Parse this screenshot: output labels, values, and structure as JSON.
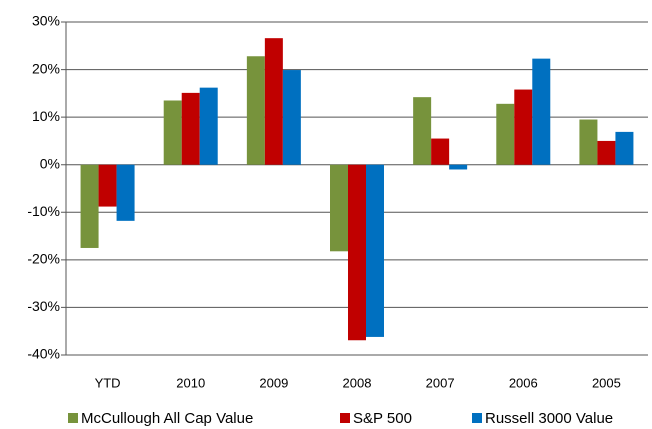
{
  "chart_data": {
    "type": "bar",
    "categories": [
      "YTD",
      "2010",
      "2009",
      "2008",
      "2007",
      "2006",
      "2005"
    ],
    "series": [
      {
        "name": "McCullough All Cap Value",
        "color": "#77933c",
        "values": [
          -17.5,
          13.5,
          22.8,
          -18.2,
          14.2,
          12.8,
          9.5
        ]
      },
      {
        "name": "S&P 500",
        "color": "#c00000",
        "values": [
          -8.8,
          15.1,
          26.6,
          -36.9,
          5.5,
          15.8,
          5.0
        ]
      },
      {
        "name": "Russell 3000 Value",
        "color": "#0070c0",
        "values": [
          -11.8,
          16.2,
          19.9,
          -36.2,
          -1.0,
          22.3,
          6.9
        ]
      }
    ],
    "ylim": [
      -40,
      30
    ],
    "yticks": [
      {
        "value": -40,
        "label": "-40%"
      },
      {
        "value": -30,
        "label": "-30%"
      },
      {
        "value": -20,
        "label": "-20%"
      },
      {
        "value": -10,
        "label": "-10%"
      },
      {
        "value": 0,
        "label": "0%"
      },
      {
        "value": 10,
        "label": "10%"
      },
      {
        "value": 20,
        "label": "20%"
      },
      {
        "value": 30,
        "label": "30%"
      }
    ],
    "grid": true,
    "legend": "bottom"
  }
}
